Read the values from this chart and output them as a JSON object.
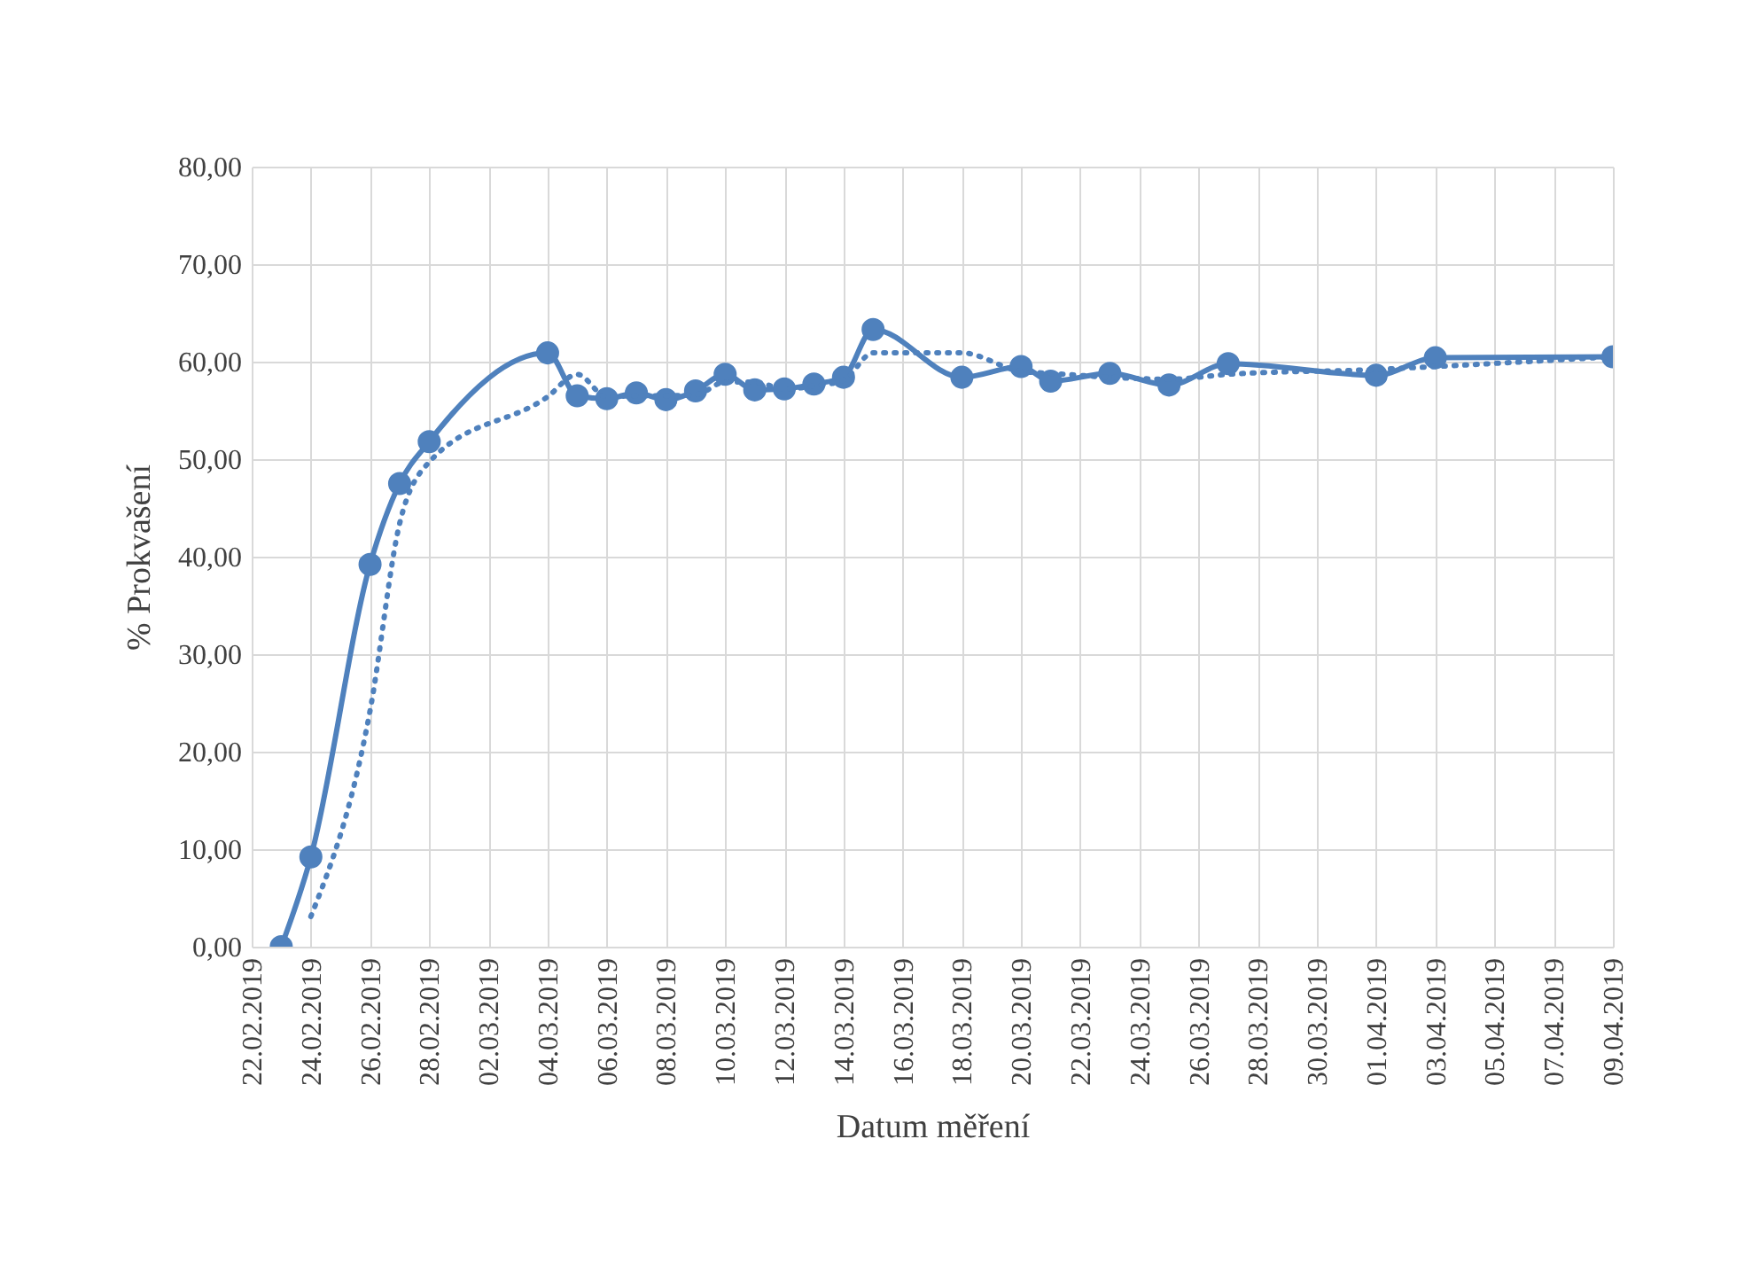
{
  "chart_data": {
    "type": "line",
    "xlabel": "Datum měření",
    "ylabel": "% Prokvašení",
    "xlim": [
      "2019-02-22",
      "2019-04-09"
    ],
    "xticks": [
      {
        "value": "2019-02-22",
        "label": "22.02.2019"
      },
      {
        "value": "2019-02-24",
        "label": "24.02.2019"
      },
      {
        "value": "2019-02-26",
        "label": "26.02.2019"
      },
      {
        "value": "2019-02-28",
        "label": "28.02.2019"
      },
      {
        "value": "2019-03-02",
        "label": "02.03.2019"
      },
      {
        "value": "2019-03-04",
        "label": "04.03.2019"
      },
      {
        "value": "2019-03-06",
        "label": "06.03.2019"
      },
      {
        "value": "2019-03-08",
        "label": "08.03.2019"
      },
      {
        "value": "2019-03-10",
        "label": "10.03.2019"
      },
      {
        "value": "2019-03-12",
        "label": "12.03.2019"
      },
      {
        "value": "2019-03-14",
        "label": "14.03.2019"
      },
      {
        "value": "2019-03-16",
        "label": "16.03.2019"
      },
      {
        "value": "2019-03-18",
        "label": "18.03.2019"
      },
      {
        "value": "2019-03-20",
        "label": "20.03.2019"
      },
      {
        "value": "2019-03-22",
        "label": "22.03.2019"
      },
      {
        "value": "2019-03-24",
        "label": "24.03.2019"
      },
      {
        "value": "2019-03-26",
        "label": "26.03.2019"
      },
      {
        "value": "2019-03-28",
        "label": "28.03.2019"
      },
      {
        "value": "2019-03-30",
        "label": "30.03.2019"
      },
      {
        "value": "2019-04-01",
        "label": "01.04.2019"
      },
      {
        "value": "2019-04-03",
        "label": "03.04.2019"
      },
      {
        "value": "2019-04-05",
        "label": "05.04.2019"
      },
      {
        "value": "2019-04-07",
        "label": "07.04.2019"
      },
      {
        "value": "2019-04-09",
        "label": "09.04.2019"
      }
    ],
    "ylim": [
      0,
      80
    ],
    "yticks": [
      {
        "value": 0,
        "label": "0,00"
      },
      {
        "value": 10,
        "label": "10,00"
      },
      {
        "value": 20,
        "label": "20,00"
      },
      {
        "value": 30,
        "label": "30,00"
      },
      {
        "value": 40,
        "label": "40,00"
      },
      {
        "value": 50,
        "label": "50,00"
      },
      {
        "value": 60,
        "label": "60,00"
      },
      {
        "value": 70,
        "label": "70,00"
      },
      {
        "value": 80,
        "label": "80,00"
      }
    ],
    "grid": true,
    "marker": "circle",
    "line_style": "solid",
    "series": [
      {
        "color": "#4f81bd",
        "x": [
          "2019-02-23",
          "2019-02-24",
          "2019-02-26",
          "2019-02-27",
          "2019-02-28",
          "2019-03-04",
          "2019-03-05",
          "2019-03-06",
          "2019-03-07",
          "2019-03-08",
          "2019-03-09",
          "2019-03-10",
          "2019-03-11",
          "2019-03-12",
          "2019-03-13",
          "2019-03-14",
          "2019-03-15",
          "2019-03-18",
          "2019-03-20",
          "2019-03-21",
          "2019-03-23",
          "2019-03-25",
          "2019-03-27",
          "2019-04-01",
          "2019-04-03",
          "2019-04-09"
        ],
        "values": [
          0,
          9.2,
          39.2,
          47.5,
          51.8,
          60.9,
          56.5,
          56.2,
          56.8,
          56.1,
          57.0,
          58.7,
          57.1,
          57.2,
          57.7,
          58.4,
          63.3,
          58.4,
          59.5,
          58.0,
          58.8,
          57.6,
          59.8,
          58.6,
          60.4,
          60.5
        ]
      },
      {
        "color": "#4f81bd",
        "type": "line",
        "line_style": "dotted",
        "marker": "none",
        "x": [
          "2019-02-24",
          "2019-02-26",
          "2019-02-27",
          "2019-02-28",
          "2019-03-04",
          "2019-03-05",
          "2019-03-06",
          "2019-03-07",
          "2019-03-08",
          "2019-03-09",
          "2019-03-10",
          "2019-03-11",
          "2019-03-12",
          "2019-03-13",
          "2019-03-14",
          "2019-03-15",
          "2019-03-18",
          "2019-03-20",
          "2019-03-21",
          "2019-03-23",
          "2019-03-25",
          "2019-03-27",
          "2019-04-01",
          "2019-04-03",
          "2019-04-09"
        ],
        "values": [
          3.1,
          24.2,
          43.4,
          49.7,
          56.4,
          58.7,
          56.4,
          56.5,
          56.5,
          56.6,
          57.9,
          57.9,
          57.2,
          57.5,
          58.1,
          60.9,
          60.9,
          59.0,
          58.8,
          58.4,
          58.2,
          58.7,
          59.2,
          59.5,
          60.5
        ]
      }
    ]
  }
}
